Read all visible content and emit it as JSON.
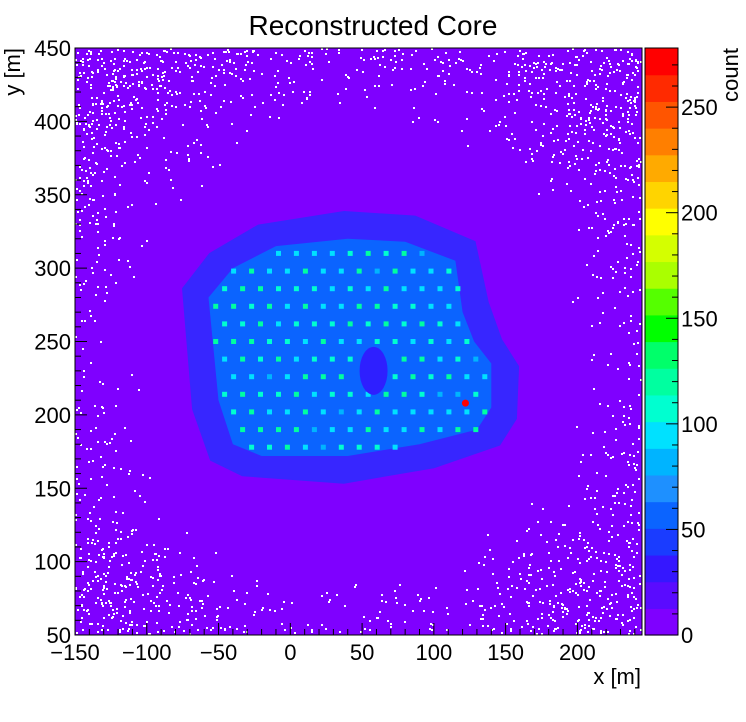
{
  "chart_data": {
    "type": "heatmap",
    "title": "Reconstructed Core",
    "xlabel": "x [m]",
    "ylabel": "y [m]",
    "zlabel": "count",
    "xlim": [
      -150,
      245
    ],
    "ylim": [
      50,
      450
    ],
    "zlim": [
      0,
      278
    ],
    "xticks": [
      -150,
      -100,
      -50,
      0,
      50,
      100,
      150,
      200
    ],
    "yticks": [
      50,
      100,
      150,
      200,
      250,
      300,
      350,
      400,
      450
    ],
    "zticks": [
      0,
      50,
      100,
      150,
      200,
      250
    ],
    "colormap": [
      "#7f00ff",
      "#5a0bff",
      "#3517ff",
      "#1a3cff",
      "#0b64ff",
      "#1e90ff",
      "#00b4ff",
      "#00e1ff",
      "#00ffd0",
      "#00ffa0",
      "#00ff6a",
      "#00ff00",
      "#55ff00",
      "#aaff00",
      "#d4ff00",
      "#ffff00",
      "#ffd400",
      "#ffaa00",
      "#ff7f00",
      "#ff5500",
      "#ff2a00",
      "#ff0000"
    ],
    "grid": false,
    "features": {
      "array_outline": [
        [
          -40,
          300
        ],
        [
          -10,
          315
        ],
        [
          40,
          320
        ],
        [
          80,
          318
        ],
        [
          115,
          305
        ],
        [
          120,
          270
        ],
        [
          128,
          250
        ],
        [
          140,
          235
        ],
        [
          140,
          205
        ],
        [
          130,
          190
        ],
        [
          90,
          180
        ],
        [
          40,
          172
        ],
        [
          -20,
          172
        ],
        [
          -40,
          180
        ],
        [
          -50,
          210
        ],
        [
          -57,
          280
        ]
      ],
      "array_background_count": 55,
      "halo_center": [
        45,
        245
      ],
      "detector_row_spacing": 12,
      "detector_col_spacing": 12.5,
      "detector_peak_count": 105,
      "gap_center": [
        58,
        230
      ],
      "hotspot": {
        "x": 122,
        "y": 208,
        "count": 270
      }
    }
  }
}
